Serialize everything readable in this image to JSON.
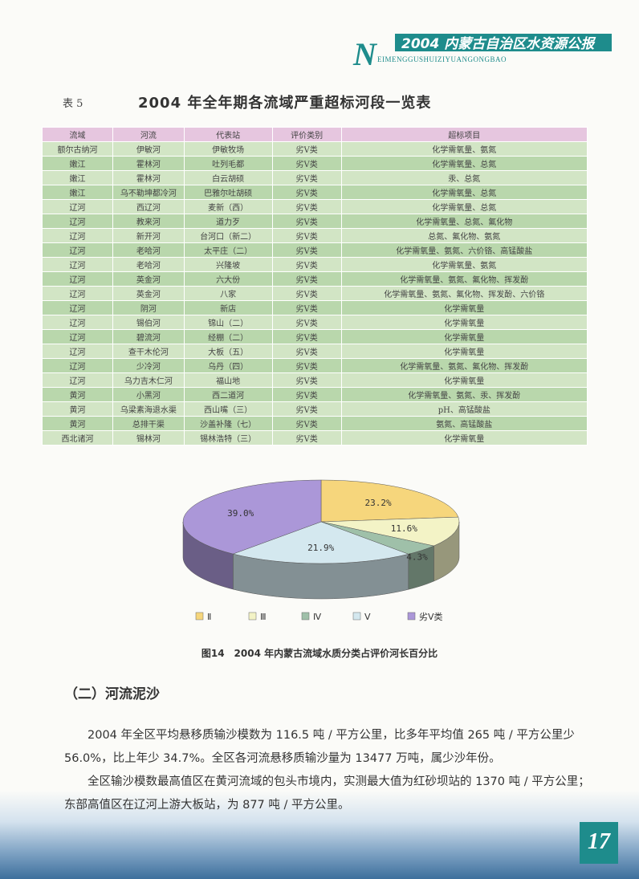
{
  "header": {
    "title": "2004 内蒙古自治区水资源公报",
    "initial": "N",
    "subtitle": "EIMENGGUSHUIZIYUANGONGBAO"
  },
  "table": {
    "label": "表 5",
    "title": "2004 年全年期各流域严重超标河段一览表",
    "columns": [
      "流域",
      "河流",
      "代表站",
      "评价类别",
      "超标项目"
    ],
    "rows": [
      [
        "额尔古纳河",
        "伊敏河",
        "伊敏牧场",
        "劣Ⅴ类",
        "化学需氧量、氨氮"
      ],
      [
        "嫩江",
        "霍林河",
        "吐列毛都",
        "劣Ⅴ类",
        "化学需氧量、总氮"
      ],
      [
        "嫩江",
        "霍林河",
        "白云胡硕",
        "劣Ⅴ类",
        "汞、总氮"
      ],
      [
        "嫩江",
        "乌不勒坤都冷河",
        "巴雅尔吐胡硕",
        "劣Ⅴ类",
        "化学需氧量、总氮"
      ],
      [
        "辽河",
        "西辽河",
        "麦新（西）",
        "劣Ⅴ类",
        "化学需氧量、总氮"
      ],
      [
        "辽河",
        "教来河",
        "道力歹",
        "劣Ⅴ类",
        "化学需氧量、总氮、氟化物"
      ],
      [
        "辽河",
        "新开河",
        "台河口（新二）",
        "劣Ⅴ类",
        "总氮、氟化物、氨氮"
      ],
      [
        "辽河",
        "老哈河",
        "太平庄（二）",
        "劣Ⅴ类",
        "化学需氧量、氨氮、六价铬、高锰酸盐"
      ],
      [
        "辽河",
        "老哈河",
        "兴隆坡",
        "劣Ⅴ类",
        "化学需氧量、氨氮"
      ],
      [
        "辽河",
        "英金河",
        "六大份",
        "劣Ⅴ类",
        "化学需氧量、氨氮、氟化物、挥发酚"
      ],
      [
        "辽河",
        "英金河",
        "八家",
        "劣Ⅴ类",
        "化学需氧量、氨氮、氟化物、挥发酚、六价铬"
      ],
      [
        "辽河",
        "阴河",
        "新店",
        "劣Ⅴ类",
        "化学需氧量"
      ],
      [
        "辽河",
        "锡伯河",
        "锦山（二）",
        "劣Ⅴ类",
        "化学需氧量"
      ],
      [
        "辽河",
        "碧流河",
        "经棚（二）",
        "劣Ⅴ类",
        "化学需氧量"
      ],
      [
        "辽河",
        "查干木伦河",
        "大板（五）",
        "劣Ⅴ类",
        "化学需氧量"
      ],
      [
        "辽河",
        "少冷河",
        "乌丹（四）",
        "劣Ⅴ类",
        "化学需氧量、氨氮、氟化物、挥发酚"
      ],
      [
        "辽河",
        "乌力吉木仁河",
        "福山地",
        "劣Ⅴ类",
        "化学需氧量"
      ],
      [
        "黄河",
        "小黑河",
        "西二道河",
        "劣Ⅴ类",
        "化学需氧量、氨氮、汞、挥发酚"
      ],
      [
        "黄河",
        "乌梁素海退水渠",
        "西山嘴（三）",
        "劣Ⅴ类",
        "pH、高锰酸盐"
      ],
      [
        "黄河",
        "总排干渠",
        "沙盖补隆（七）",
        "劣Ⅴ类",
        "氨氮、高锰酸盐"
      ],
      [
        "西北诸河",
        "锡林河",
        "锡林浩特（三）",
        "劣Ⅴ类",
        "化学需氧量"
      ]
    ]
  },
  "chart": {
    "type": "pie",
    "categories": [
      "Ⅱ",
      "Ⅲ",
      "Ⅳ",
      "Ⅴ",
      "劣Ⅴ类"
    ],
    "values": [
      23.2,
      11.6,
      4.3,
      21.9,
      39.0
    ],
    "value_labels": [
      "23.2%",
      "11.6%",
      "4.3%",
      "21.9%",
      "39.0%"
    ],
    "colors": [
      "#f6d67c",
      "#f3f3c6",
      "#9fc0a9",
      "#d4e8ef",
      "#ab97d8"
    ],
    "caption": "图14　2004 年内蒙古流域水质分类占评价河长百分比"
  },
  "section": {
    "heading": "（二）河流泥沙",
    "paragraphs": [
      "2004 年全区平均悬移质输沙模数为 116.5 吨 / 平方公里，比多年平均值 265 吨 / 平方公里少 56.0%，比上年少 34.7%。全区各河流悬移质输沙量为 13477 万吨，属少沙年份。",
      "全区输沙模数最高值区在黄河流域的包头市境内，实测最大值为红砂坝站的 1370 吨 / 平方公里；东部高值区在辽河上游大板站，为 877 吨 / 平方公里。"
    ]
  },
  "page_number": "17"
}
